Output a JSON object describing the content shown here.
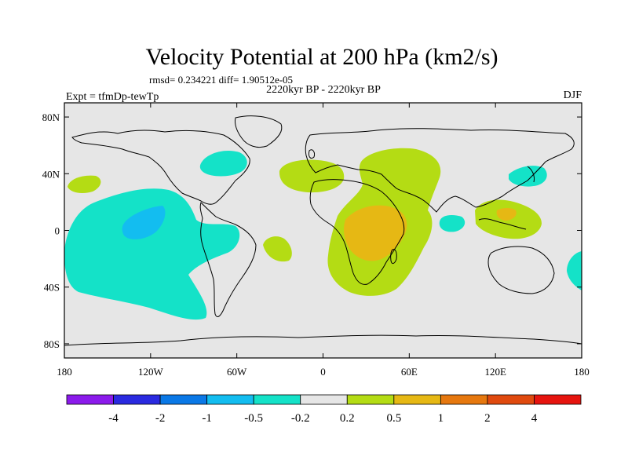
{
  "chart_data": {
    "type": "heatmap",
    "title": "Velocity Potential at 200 hPa (km2/s)",
    "stats_line": "rmsd= 0.234221 diff= 1.90512e-05",
    "left_label": "Expt = tfmDp-tewTp",
    "center_label": "2220kyr BP - 2220kyr BP",
    "right_label": "DJF",
    "x_axis": {
      "range": [
        -180,
        180
      ],
      "ticks": [
        {
          "value": -180,
          "label": "180"
        },
        {
          "value": -120,
          "label": "120W"
        },
        {
          "value": -60,
          "label": "60W"
        },
        {
          "value": 0,
          "label": "0"
        },
        {
          "value": 60,
          "label": "60E"
        },
        {
          "value": 120,
          "label": "120E"
        },
        {
          "value": 180,
          "label": "180"
        }
      ]
    },
    "y_axis": {
      "range": [
        -90,
        90
      ],
      "ticks": [
        {
          "value": 80,
          "label": "80N"
        },
        {
          "value": 40,
          "label": "40N"
        },
        {
          "value": 0,
          "label": "0"
        },
        {
          "value": -40,
          "label": "40S"
        },
        {
          "value": -80,
          "label": "80S"
        }
      ]
    },
    "colorbar": {
      "levels": [
        "-4",
        "-2",
        "-1",
        "-0.5",
        "-0.2",
        "0.2",
        "0.5",
        "1",
        "2",
        "4"
      ],
      "colors": [
        "#8b1aeb",
        "#2a2ae0",
        "#0a78e6",
        "#13bdf0",
        "#14e2c8",
        "#e6e6e6",
        "#b4dc14",
        "#e6b814",
        "#e6780f",
        "#e04a0f",
        "#e6140f"
      ]
    },
    "regions": [
      {
        "name": "central-pacific-negative",
        "level": "-0.5 to -0.2",
        "color": "#14e2c8"
      },
      {
        "name": "central-pacific-core",
        "level": "-1 to -0.5",
        "color": "#13bdf0"
      },
      {
        "name": "africa-positive",
        "level": "0.2 to 0.5",
        "color": "#b4dc14"
      },
      {
        "name": "africa-core",
        "level": "0.5 to 1",
        "color": "#e6b814"
      },
      {
        "name": "maritime-continent",
        "level": "0.2 to 1",
        "color": "#b4dc14"
      }
    ]
  }
}
